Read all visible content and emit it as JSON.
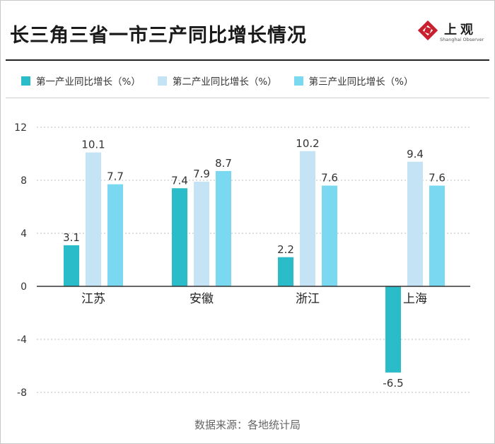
{
  "header": {
    "title": "长三角三省一市三产同比增长情况",
    "brand_name": "上观",
    "brand_sub": "Shanghai Observer"
  },
  "colors": {
    "series1": "#2bbcc9",
    "series2": "#c4e4f6",
    "series3": "#7ad9f0",
    "axis": "#333333",
    "grid": "#bdbdbd",
    "text": "#333333",
    "brand": "#c8202e"
  },
  "chart_data": {
    "type": "bar",
    "title": "长三角三省一市三产同比增长情况",
    "categories": [
      "江苏",
      "安徽",
      "浙江",
      "上海"
    ],
    "series": [
      {
        "name": "第一产业同比增长（%）",
        "values": [
          3.1,
          7.4,
          2.2,
          -6.5
        ]
      },
      {
        "name": "第二产业同比增长（%）",
        "values": [
          10.1,
          7.9,
          10.2,
          9.4
        ]
      },
      {
        "name": "第三产业同比增长（%）",
        "values": [
          7.7,
          8.7,
          7.6,
          7.6
        ]
      }
    ],
    "value_labels": [
      [
        "3.1",
        "7.4",
        "2.2",
        "-6.5"
      ],
      [
        "10.1",
        "7.9",
        "10.2",
        "9.4"
      ],
      [
        "7.7",
        "8.7",
        "7.6",
        "7.6"
      ]
    ],
    "y_ticks": [
      -8,
      -4,
      0,
      4,
      8,
      12
    ],
    "y_tick_labels": [
      "-8",
      "-4",
      "0",
      "4",
      "8",
      "12"
    ],
    "ylim": [
      -8,
      12
    ],
    "xlabel": "",
    "ylabel": "",
    "grid": "dashed horizontal",
    "legend": "top"
  },
  "footer": {
    "source": "数据来源：各地统计局"
  }
}
